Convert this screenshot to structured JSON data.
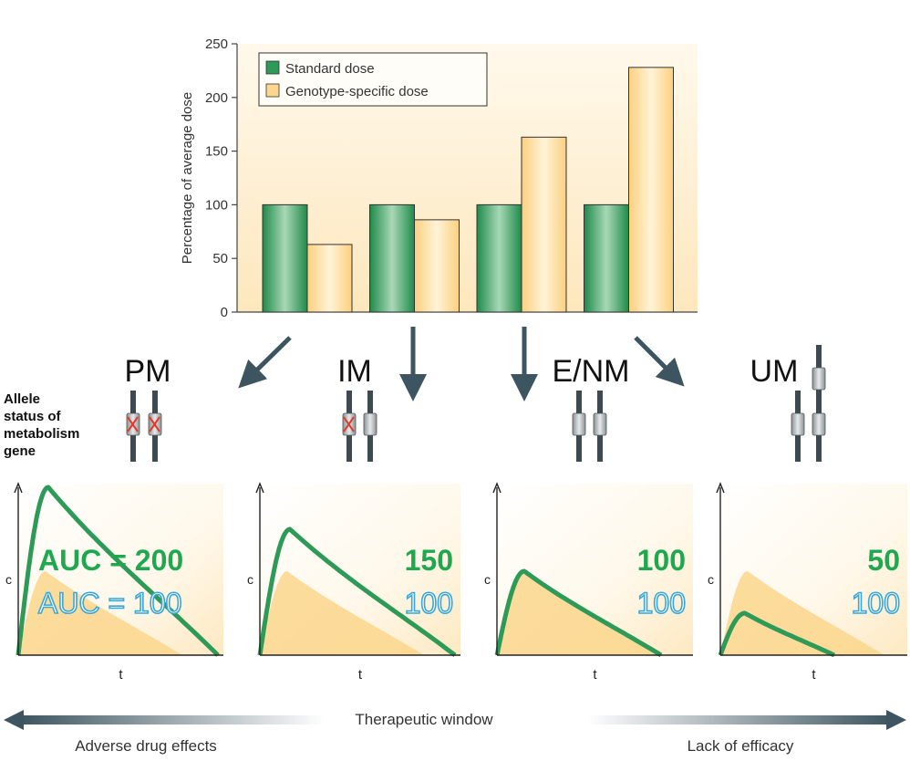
{
  "chart_data": [
    {
      "type": "bar",
      "categories": [
        "PM",
        "IM",
        "E/NM",
        "UM"
      ],
      "series": [
        {
          "name": "Standard dose",
          "values": [
            100,
            100,
            100,
            100
          ],
          "color": "#2e9a57"
        },
        {
          "name": "Genotype-specific dose",
          "values": [
            63,
            86,
            163,
            228
          ],
          "color": "#fbd68c"
        }
      ],
      "title": "",
      "xlabel": "",
      "ylabel": "Percentage of average dose",
      "yticks": [
        0,
        50,
        100,
        150,
        200,
        250
      ],
      "ylim": [
        0,
        250
      ],
      "grid": false,
      "legend_position": "top-left"
    },
    {
      "type": "line",
      "panels": [
        {
          "phenotype": "PM",
          "auc_standard": "AUC = 200",
          "auc_specific": "AUC = 100",
          "standard_peak": 2.0,
          "standard_tail": 2.0
        },
        {
          "phenotype": "IM",
          "auc_standard": "150",
          "auc_specific": "100",
          "standard_peak": 1.5,
          "standard_tail": 1.5
        },
        {
          "phenotype": "E/NM",
          "auc_standard": "100",
          "auc_specific": "100",
          "standard_peak": 1.0,
          "standard_tail": 1.0
        },
        {
          "phenotype": "UM",
          "auc_standard": "50",
          "auc_specific": "100",
          "standard_peak": 0.5,
          "standard_tail": 0.5
        }
      ],
      "xlabel": "t",
      "ylabel": "c"
    }
  ],
  "allele_label": [
    "Allele",
    "status of",
    "metabolism",
    "gene"
  ],
  "axis_bottom": {
    "center": "Therapeutic window",
    "left": "Adverse drug effects",
    "right": "Lack of efficacy"
  },
  "colors": {
    "green": "#2e9a57",
    "green_text": "#1fa84f",
    "blue_text": "#3aa7d8",
    "orange": "#fbd68c",
    "arrow": "#3d5560"
  }
}
